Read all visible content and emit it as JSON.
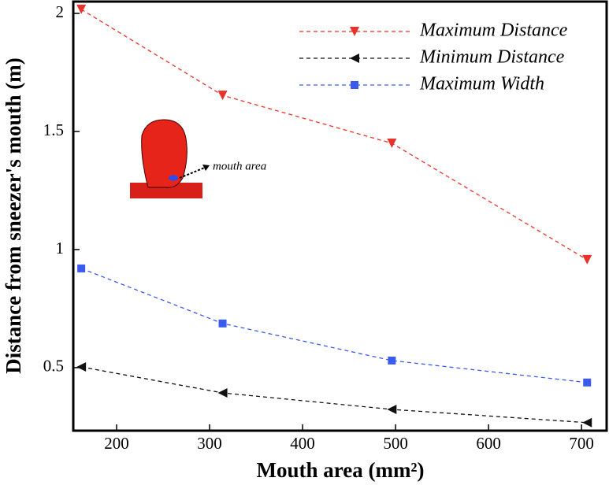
{
  "chart_data": {
    "type": "line",
    "x_label": "Mouth area (mm²)",
    "y_label": "Distance from sneezer's mouth (m)",
    "annotation": "mouth area",
    "x": [
      162,
      314,
      496,
      706
    ],
    "series": [
      {
        "name": "Maximum Distance",
        "color": "#e8332a",
        "marker": "triangle-down",
        "values": [
          2.017,
          1.653,
          1.45,
          0.957
        ]
      },
      {
        "name": "Minimum Distance",
        "color": "#111111",
        "marker": "triangle-left",
        "values": [
          0.503,
          0.393,
          0.323,
          0.267
        ]
      },
      {
        "name": "Maximum Width",
        "color": "#3b5bf0",
        "marker": "square",
        "values": [
          0.92,
          0.687,
          0.53,
          0.437
        ]
      }
    ],
    "xlim": [
      153.4,
      727
    ],
    "xticks": [
      200,
      300,
      400,
      500,
      600,
      700
    ],
    "ylim": [
      0.233,
      2.05
    ],
    "yticks": [
      0.5,
      1,
      1.5,
      2
    ],
    "legend": "upper right"
  }
}
